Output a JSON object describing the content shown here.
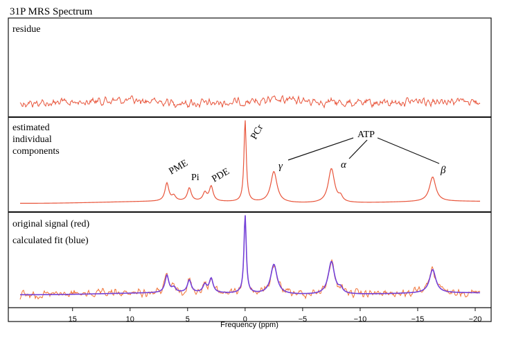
{
  "chart_data": {
    "type": "line",
    "title": "31P MRS Spectrum",
    "xlabel": "Frequency (ppm)",
    "x_reversed": true,
    "xlim": [
      19.5,
      -20.5
    ],
    "xticks": [
      15,
      10,
      5,
      0,
      -5,
      -10,
      -15,
      -20
    ],
    "xtick_labels": [
      "15",
      "10",
      "5",
      "0",
      "−5",
      "−10",
      "−15",
      "−20"
    ],
    "grid": false,
    "panels": [
      {
        "name": "residue",
        "label_lines": [
          "residue"
        ],
        "series": [
          {
            "color": "#e8543a",
            "kind": "noise",
            "amplitude": 0.03
          }
        ]
      },
      {
        "name": "components",
        "label_lines": [
          "estimated",
          "individual",
          "components"
        ],
        "series": [
          {
            "color": "#e8543a",
            "kind": "fit"
          }
        ],
        "peaks": [
          {
            "label": "PME",
            "ppm": 6.8,
            "height": 0.22
          },
          {
            "label": "",
            "ppm": 6.2,
            "height": 0.06
          },
          {
            "label": "Pi",
            "ppm": 4.85,
            "height": 0.16
          },
          {
            "label": "",
            "ppm": 3.5,
            "height": 0.1
          },
          {
            "label": "PDE",
            "ppm": 2.95,
            "height": 0.18
          },
          {
            "label": "PCr",
            "ppm": 0.0,
            "height": 1.0
          },
          {
            "label": "γ",
            "ppm": -2.5,
            "height": 0.38
          },
          {
            "label": "α",
            "ppm": -7.5,
            "height": 0.42
          },
          {
            "label": "",
            "ppm": -8.3,
            "height": 0.06
          },
          {
            "label": "β",
            "ppm": -16.3,
            "height": 0.3
          }
        ],
        "group_label": "ATP",
        "group_members": [
          "γ",
          "α",
          "β"
        ]
      },
      {
        "name": "original-and-fit",
        "label_lines": [
          "original signal (red)",
          "calculated fit (blue)"
        ],
        "series": [
          {
            "name": "original signal",
            "color": "#f07034",
            "kind": "fit+noise"
          },
          {
            "name": "calculated fit",
            "color": "#7340d8",
            "kind": "fit"
          }
        ]
      }
    ]
  }
}
